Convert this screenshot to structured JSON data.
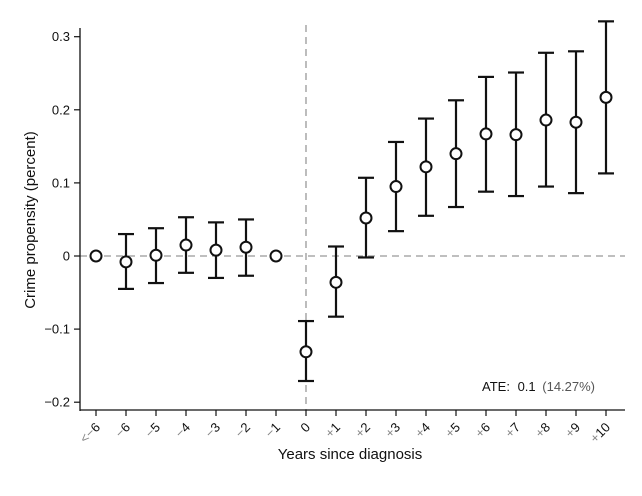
{
  "chart_data": {
    "type": "scatter",
    "subtype": "point-estimates-with-confidence-intervals",
    "xlabel": "Years since diagnosis",
    "ylabel": "Crime propensity (percent)",
    "ylim": [
      -0.2,
      0.3
    ],
    "yticks": [
      -0.2,
      -0.1,
      0,
      0.1,
      0.2,
      0.3
    ],
    "ytick_labels": [
      "−0.2",
      "−0.1",
      "0",
      "0.1",
      "0.2",
      "0.3"
    ],
    "categories": [
      "<−6",
      "−6",
      "−5",
      "−4",
      "−3",
      "−2",
      "−1",
      "0",
      "+1",
      "+2",
      "+3",
      "+4",
      "+5",
      "+6",
      "+7",
      "+8",
      "+9",
      "+10"
    ],
    "estimates": [
      0,
      -0.008,
      0.001,
      0.015,
      0.008,
      0.012,
      0,
      -0.131,
      -0.036,
      0.052,
      0.095,
      0.122,
      0.14,
      0.167,
      0.166,
      0.186,
      0.183,
      0.217
    ],
    "ci_upper": [
      null,
      0.03,
      0.038,
      0.053,
      0.046,
      0.05,
      null,
      -0.089,
      0.013,
      0.107,
      0.156,
      0.188,
      0.213,
      0.245,
      0.251,
      0.278,
      0.28,
      0.321
    ],
    "ci_lower": [
      null,
      -0.045,
      -0.037,
      -0.023,
      -0.03,
      -0.027,
      null,
      -0.171,
      -0.083,
      -0.002,
      0.034,
      0.055,
      0.067,
      0.088,
      0.082,
      0.095,
      0.086,
      0.113
    ],
    "reference_lines": {
      "horizontal": 0,
      "vertical": "0"
    },
    "grid": false,
    "annotation": {
      "label": "ATE:",
      "value": "0.1",
      "percent": "(14.27%)"
    },
    "colors": {
      "marks": "#111111",
      "reference": "#999999",
      "muted_text": "#888888"
    }
  }
}
